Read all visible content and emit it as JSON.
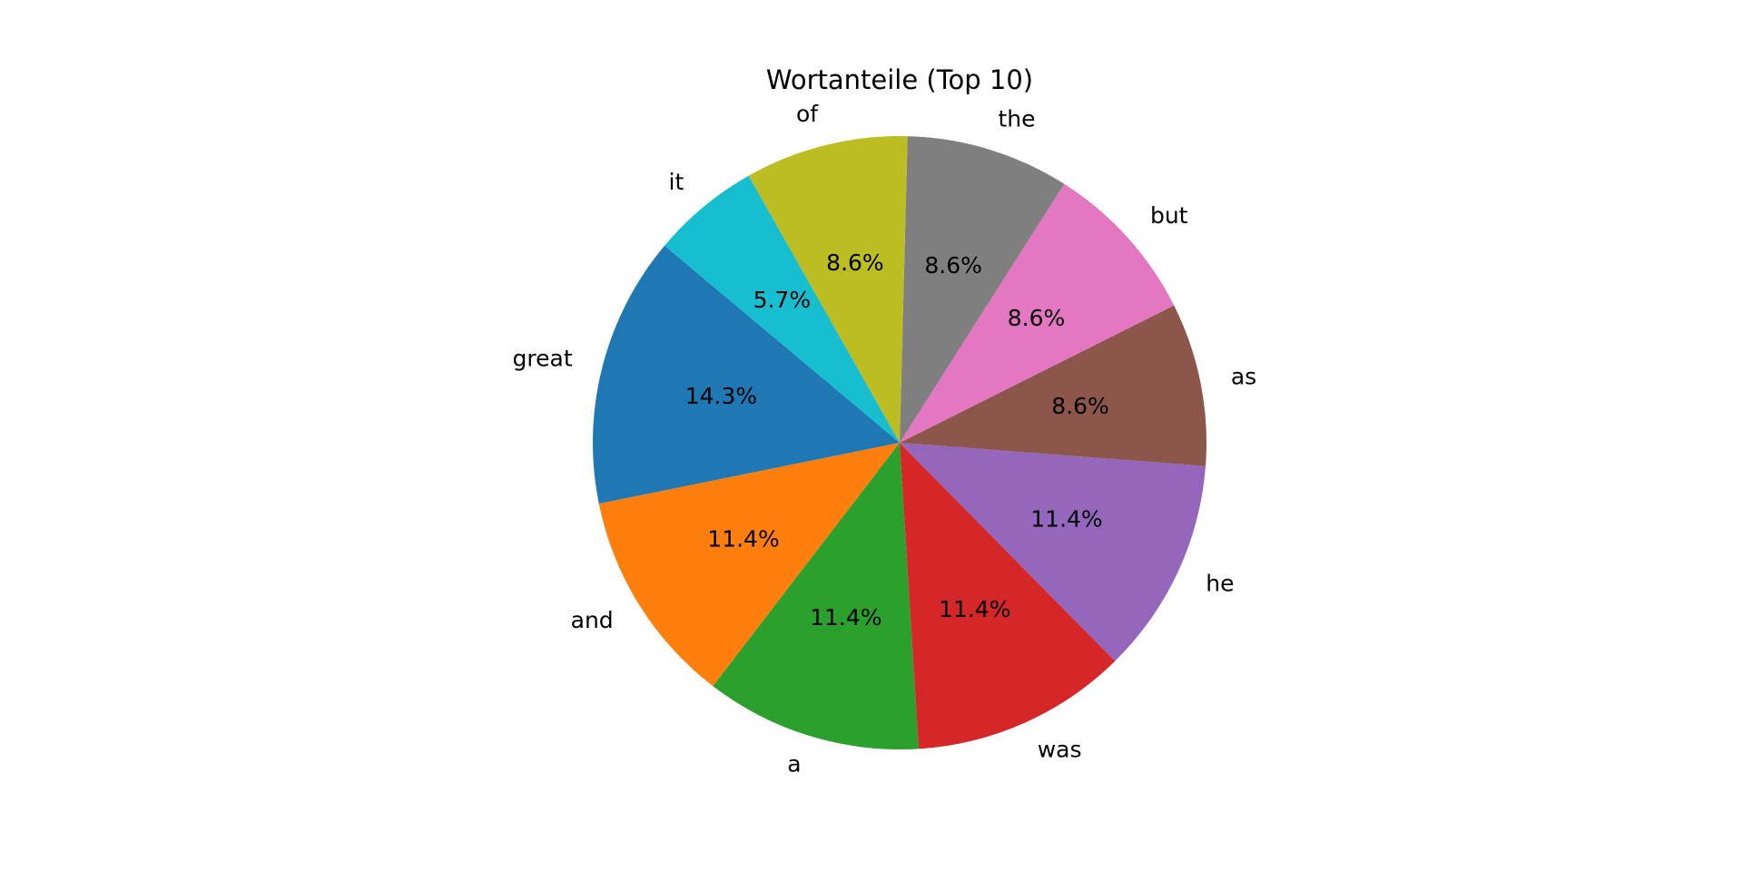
{
  "chart_data": {
    "type": "pie",
    "title": "Wortanteile (Top 10)",
    "labels": [
      "great",
      "and",
      "a",
      "was",
      "he",
      "as",
      "but",
      "the",
      "of",
      "it"
    ],
    "values": [
      14.3,
      11.4,
      11.4,
      11.4,
      11.4,
      8.6,
      8.6,
      8.6,
      8.6,
      5.7
    ],
    "value_labels": [
      "14.3%",
      "11.4%",
      "11.4%",
      "11.4%",
      "11.4%",
      "8.6%",
      "8.6%",
      "8.6%",
      "8.6%",
      "5.7%"
    ],
    "colors": [
      "#1f77b4",
      "#ff7f0e",
      "#2ca02c",
      "#d62728",
      "#9467bd",
      "#8c564b",
      "#e377c2",
      "#7f7f7f",
      "#bcbd22",
      "#17becf"
    ],
    "start_angle_deg": 140,
    "direction": "counterclockwise",
    "legend": "none"
  }
}
